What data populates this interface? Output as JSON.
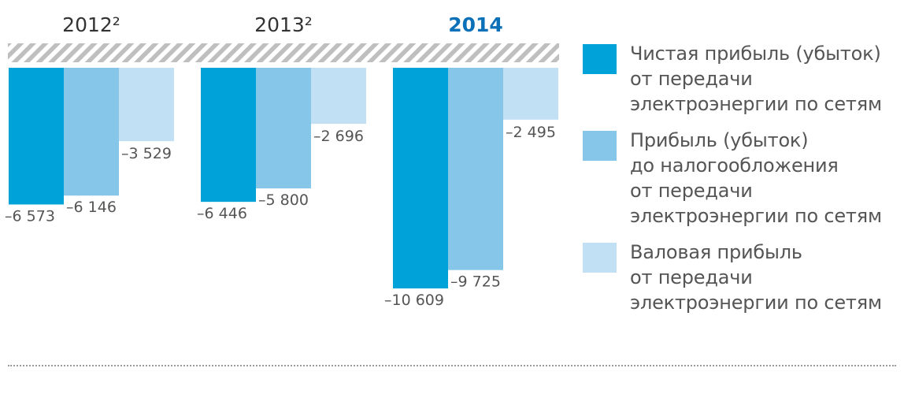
{
  "colors": {
    "series_1": "#00a3d9",
    "series_2": "#86c6e8",
    "series_3": "#c2e0f4",
    "hatch": "#bfbfbf",
    "year_current": "#0a70b8"
  },
  "years": [
    {
      "label": "2012²",
      "current": false
    },
    {
      "label": "2013²",
      "current": false
    },
    {
      "label": "2014",
      "current": true
    }
  ],
  "legend": [
    {
      "label": "Чистая прибыль (убыток)\nот передачи\nэлектроэнергии по сетям"
    },
    {
      "label": "Прибыль (убыток)\nдо налогообложения\nот передачи\nэлектроэнергии по сетям"
    },
    {
      "label": "Валовая прибыль\nот передачи\nэлектроэнергии по сетям"
    }
  ],
  "chart_data": {
    "type": "bar",
    "categories": [
      "2012²",
      "2013²",
      "2014"
    ],
    "series": [
      {
        "name": "Чистая прибыль (убыток) от передачи электроэнергии по сетям",
        "values": [
          -6573,
          -6446,
          -10609
        ],
        "labels": [
          "–6 573",
          "–6 446",
          "–10 609"
        ]
      },
      {
        "name": "Прибыль (убыток) до налогообложения от передачи электроэнергии по сетям",
        "values": [
          -6146,
          -5800,
          -9725
        ],
        "labels": [
          "–6 146",
          "–5 800",
          "–9 725"
        ]
      },
      {
        "name": "Валовая прибыль от передачи электроэнергии по сетям",
        "values": [
          -3529,
          -2696,
          -2495
        ],
        "labels": [
          "–3 529",
          "–2 696",
          "–2 495"
        ]
      }
    ],
    "ylim": [
      -10609,
      0
    ],
    "grid": false,
    "legend_position": "right"
  }
}
